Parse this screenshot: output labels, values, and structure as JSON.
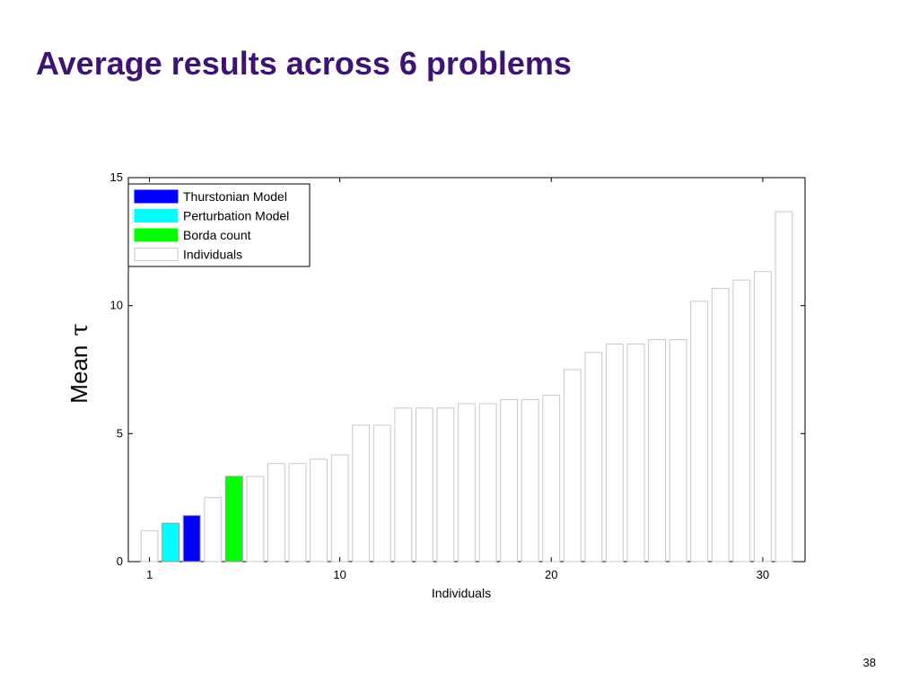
{
  "slide": {
    "title": "Average results across 6 problems",
    "page_number": "38"
  },
  "chart_data": {
    "type": "bar",
    "xlabel": "Individuals",
    "ylabel": "Mean",
    "ylabel_symbol": "τ",
    "xlim": [
      0,
      32
    ],
    "ylim": [
      0,
      15
    ],
    "xticks": [
      1,
      10,
      20,
      30
    ],
    "yticks": [
      0,
      5,
      10,
      15
    ],
    "grid": false,
    "legend_position": "top-left",
    "bars": [
      {
        "x": 1,
        "value": 1.2,
        "series": "individuals"
      },
      {
        "x": 2,
        "value": 1.5,
        "series": "perturbation"
      },
      {
        "x": 3,
        "value": 1.8,
        "series": "thurstonian"
      },
      {
        "x": 4,
        "value": 2.5,
        "series": "individuals"
      },
      {
        "x": 5,
        "value": 3.33,
        "series": "borda"
      },
      {
        "x": 6,
        "value": 3.33,
        "series": "individuals"
      },
      {
        "x": 7,
        "value": 3.83,
        "series": "individuals"
      },
      {
        "x": 8,
        "value": 3.83,
        "series": "individuals"
      },
      {
        "x": 9,
        "value": 4.0,
        "series": "individuals"
      },
      {
        "x": 10,
        "value": 4.17,
        "series": "individuals"
      },
      {
        "x": 11,
        "value": 5.33,
        "series": "individuals"
      },
      {
        "x": 12,
        "value": 5.33,
        "series": "individuals"
      },
      {
        "x": 13,
        "value": 6.0,
        "series": "individuals"
      },
      {
        "x": 14,
        "value": 6.0,
        "series": "individuals"
      },
      {
        "x": 15,
        "value": 6.0,
        "series": "individuals"
      },
      {
        "x": 16,
        "value": 6.17,
        "series": "individuals"
      },
      {
        "x": 17,
        "value": 6.17,
        "series": "individuals"
      },
      {
        "x": 18,
        "value": 6.33,
        "series": "individuals"
      },
      {
        "x": 19,
        "value": 6.33,
        "series": "individuals"
      },
      {
        "x": 20,
        "value": 6.5,
        "series": "individuals"
      },
      {
        "x": 21,
        "value": 7.5,
        "series": "individuals"
      },
      {
        "x": 22,
        "value": 8.17,
        "series": "individuals"
      },
      {
        "x": 23,
        "value": 8.5,
        "series": "individuals"
      },
      {
        "x": 24,
        "value": 8.5,
        "series": "individuals"
      },
      {
        "x": 25,
        "value": 8.67,
        "series": "individuals"
      },
      {
        "x": 26,
        "value": 8.67,
        "series": "individuals"
      },
      {
        "x": 27,
        "value": 10.17,
        "series": "individuals"
      },
      {
        "x": 28,
        "value": 10.67,
        "series": "individuals"
      },
      {
        "x": 29,
        "value": 11.0,
        "series": "individuals"
      },
      {
        "x": 30,
        "value": 11.33,
        "series": "individuals"
      },
      {
        "x": 31,
        "value": 13.67,
        "series": "individuals"
      }
    ],
    "series": [
      {
        "key": "thurstonian",
        "name": "Thurstonian Model",
        "color": "#0000ff"
      },
      {
        "key": "perturbation",
        "name": "Perturbation Model",
        "color": "#00ffff"
      },
      {
        "key": "borda",
        "name": "Borda count",
        "color": "#00ff00"
      },
      {
        "key": "individuals",
        "name": "Individuals",
        "color": "#ffffff"
      }
    ]
  }
}
